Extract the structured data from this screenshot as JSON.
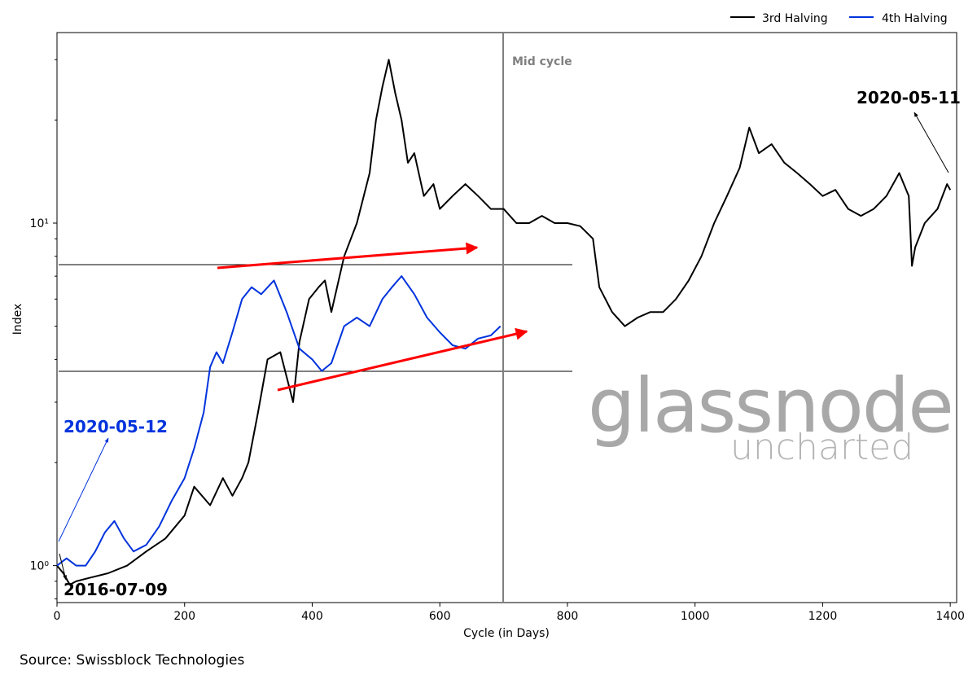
{
  "chart_data": {
    "type": "line",
    "title": "",
    "xlabel": "Cycle (in Days)",
    "ylabel": "Index",
    "xlim": [
      0,
      1410
    ],
    "ylim": [
      0.78,
      36
    ],
    "yscale": "log",
    "grid": false,
    "legend_placement": "top-right",
    "x_ticks": [
      0,
      200,
      400,
      600,
      800,
      1000,
      1200,
      1400
    ],
    "x_tick_labels": [
      "0",
      "200",
      "400",
      "600",
      "800",
      "1000",
      "1200",
      "1400"
    ],
    "y_ticks": [
      1,
      10
    ],
    "y_tick_labels": [
      "10⁰",
      "10¹"
    ],
    "series": [
      {
        "name": "3rd Halving",
        "color": "#000000",
        "x": [
          0,
          10,
          20,
          30,
          50,
          80,
          110,
          140,
          170,
          200,
          215,
          240,
          260,
          275,
          290,
          300,
          315,
          330,
          350,
          370,
          380,
          395,
          410,
          420,
          430,
          450,
          470,
          490,
          500,
          510,
          520,
          530,
          540,
          550,
          560,
          575,
          590,
          600,
          620,
          640,
          660,
          680,
          700,
          720,
          740,
          760,
          780,
          800,
          820,
          840,
          850,
          870,
          890,
          910,
          930,
          950,
          970,
          990,
          1010,
          1030,
          1050,
          1070,
          1085,
          1100,
          1120,
          1140,
          1160,
          1180,
          1200,
          1220,
          1240,
          1260,
          1280,
          1300,
          1320,
          1335,
          1340,
          1345,
          1360,
          1380,
          1395,
          1400
        ],
        "values": [
          1.0,
          0.95,
          0.88,
          0.9,
          0.92,
          0.95,
          1.0,
          1.1,
          1.2,
          1.4,
          1.7,
          1.5,
          1.8,
          1.6,
          1.8,
          2.0,
          2.8,
          4.0,
          4.2,
          3.0,
          4.5,
          6.0,
          6.5,
          6.8,
          5.5,
          8.0,
          10.0,
          14.0,
          20.0,
          25.0,
          30.0,
          24.0,
          20.0,
          15.0,
          16.0,
          12.0,
          13.0,
          11.0,
          12.0,
          13.0,
          12.0,
          11.0,
          11.0,
          10.0,
          10.0,
          10.5,
          10.0,
          10.0,
          9.8,
          9.0,
          6.5,
          5.5,
          5.0,
          5.3,
          5.5,
          5.5,
          6.0,
          6.8,
          8.0,
          10.0,
          12.0,
          14.5,
          19.0,
          16.0,
          17.0,
          15.0,
          14.0,
          13.0,
          12.0,
          12.5,
          11.0,
          10.5,
          11.0,
          12.0,
          14.0,
          12.0,
          7.5,
          8.5,
          10.0,
          11.0,
          13.0,
          12.5
        ]
      },
      {
        "name": "4th Halving",
        "color": "#0033dd",
        "x": [
          0,
          15,
          30,
          45,
          60,
          75,
          90,
          105,
          120,
          140,
          160,
          180,
          200,
          215,
          230,
          240,
          250,
          260,
          275,
          290,
          305,
          320,
          340,
          360,
          380,
          400,
          415,
          430,
          450,
          470,
          490,
          510,
          525,
          540,
          560,
          580,
          600,
          620,
          640,
          660,
          680,
          695
        ],
        "values": [
          1.0,
          1.05,
          1.0,
          1.0,
          1.1,
          1.25,
          1.35,
          1.2,
          1.1,
          1.15,
          1.3,
          1.55,
          1.8,
          2.2,
          2.8,
          3.8,
          4.2,
          3.9,
          4.8,
          6.0,
          6.5,
          6.2,
          6.8,
          5.5,
          4.3,
          4.0,
          3.7,
          3.9,
          5.0,
          5.3,
          5.0,
          6.0,
          6.5,
          7.0,
          6.2,
          5.3,
          4.8,
          4.4,
          4.3,
          4.6,
          4.7,
          5.0
        ]
      }
    ],
    "annotations": [
      {
        "text": "Mid cycle",
        "color": "#808080"
      },
      {
        "text": "2020-05-12",
        "color": "#0033dd"
      },
      {
        "text": "2016-07-09",
        "color": "#000000"
      },
      {
        "text": "2020-05-11",
        "color": "#000000"
      }
    ]
  },
  "watermark": {
    "main": "glassnode",
    "sub": "uncharted"
  },
  "source": "Source: Swissblock Technologies"
}
